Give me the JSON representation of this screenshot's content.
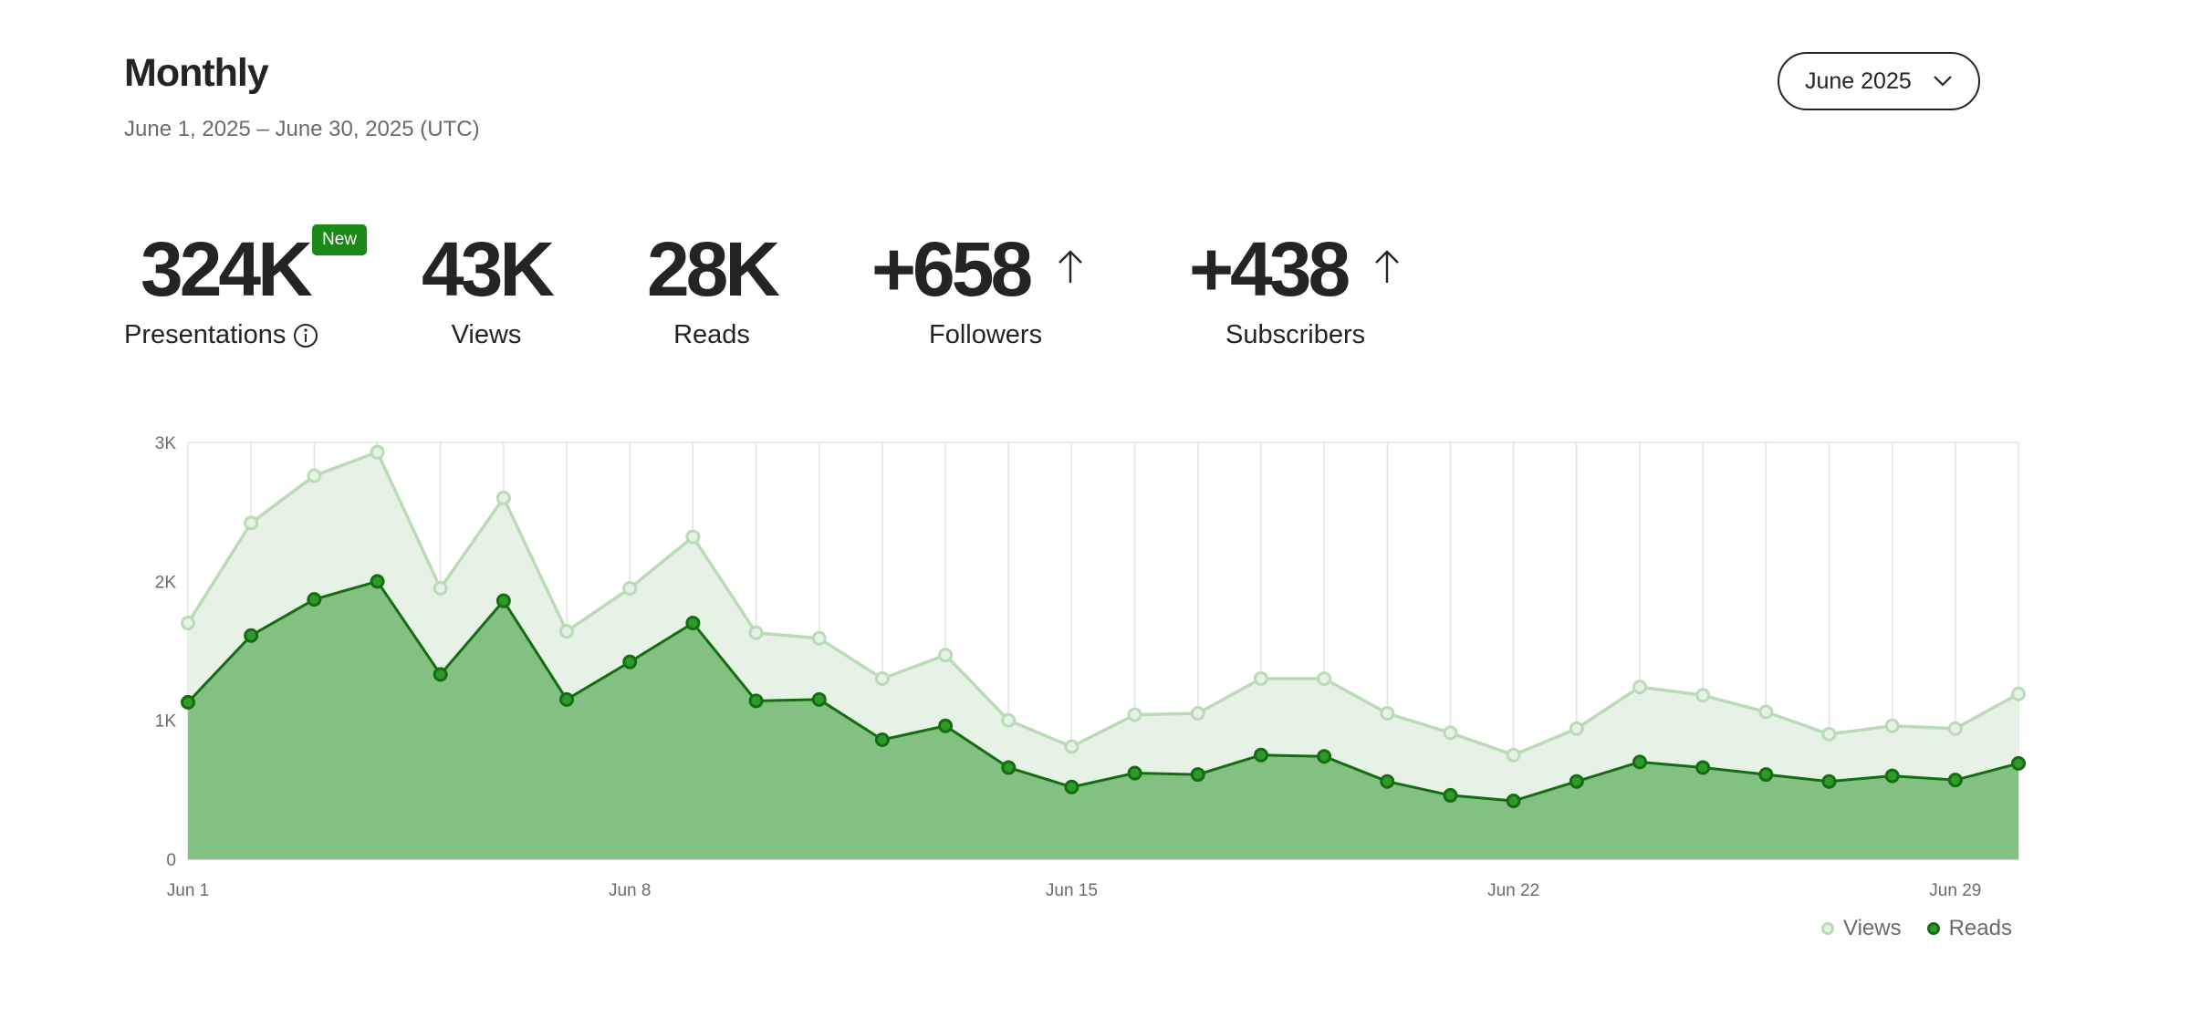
{
  "header": {
    "title": "Monthly",
    "date_range": "June 1, 2025 – June 30, 2025 (UTC)",
    "month_select": {
      "value": "June 2025",
      "icon": "chevron-down-icon"
    }
  },
  "stats": {
    "presentations": {
      "value": "324K",
      "label": "Presentations",
      "badge": "New",
      "icon": "info-icon"
    },
    "views": {
      "value": "43K",
      "label": "Views"
    },
    "reads": {
      "value": "28K",
      "label": "Reads"
    },
    "followers": {
      "value": "+658",
      "label": "Followers",
      "icon": "arrow-up-icon"
    },
    "subscribers": {
      "value": "+438",
      "label": "Subscribers",
      "icon": "arrow-up-icon"
    }
  },
  "colors": {
    "views_line": "#b9dcb6",
    "views_fill": "#e6f2e5",
    "reads_line": "#156d12",
    "reads_fill": "#83c183",
    "reads_marker": "#2f9a2b",
    "badge": "#1a8917",
    "grid": "#e3e3e3"
  },
  "chart_data": {
    "type": "area",
    "x": [
      "Jun 1",
      "Jun 2",
      "Jun 3",
      "Jun 4",
      "Jun 5",
      "Jun 6",
      "Jun 7",
      "Jun 8",
      "Jun 9",
      "Jun 10",
      "Jun 11",
      "Jun 12",
      "Jun 13",
      "Jun 14",
      "Jun 15",
      "Jun 16",
      "Jun 17",
      "Jun 18",
      "Jun 19",
      "Jun 20",
      "Jun 21",
      "Jun 22",
      "Jun 23",
      "Jun 24",
      "Jun 25",
      "Jun 26",
      "Jun 27",
      "Jun 28",
      "Jun 29",
      "Jun 30"
    ],
    "x_tick_labels": [
      "Jun 1",
      "Jun 8",
      "Jun 15",
      "Jun 22",
      "Jun 29"
    ],
    "x_tick_index": [
      0,
      7,
      14,
      21,
      28
    ],
    "y_ticks": [
      0,
      1000,
      2000,
      3000
    ],
    "y_tick_labels": [
      "0",
      "1K",
      "2K",
      "3K"
    ],
    "ylim": [
      0,
      3000
    ],
    "grid": true,
    "series": [
      {
        "name": "Views",
        "values": [
          1700,
          2420,
          2760,
          2930,
          1950,
          2600,
          1640,
          1950,
          2320,
          1630,
          1590,
          1300,
          1470,
          1000,
          810,
          1040,
          1050,
          1300,
          1300,
          1050,
          910,
          750,
          940,
          1240,
          1180,
          1060,
          900,
          960,
          940,
          1190
        ]
      },
      {
        "name": "Reads",
        "values": [
          1130,
          1610,
          1870,
          2000,
          1330,
          1860,
          1150,
          1420,
          1700,
          1140,
          1150,
          860,
          960,
          660,
          520,
          620,
          610,
          750,
          740,
          560,
          460,
          420,
          560,
          700,
          660,
          610,
          560,
          600,
          570,
          690
        ]
      }
    ],
    "legend": {
      "position": "bottom-right",
      "entries": [
        "Views",
        "Reads"
      ]
    }
  }
}
